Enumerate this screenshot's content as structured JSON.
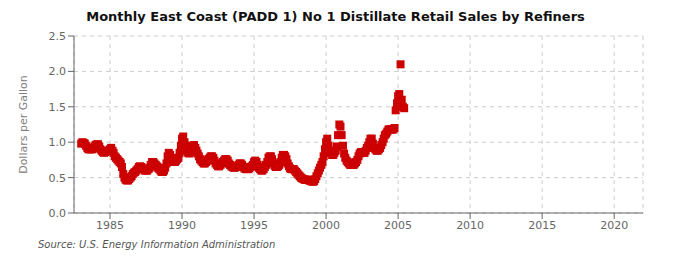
{
  "chart_data": {
    "type": "scatter",
    "title": "Monthly East Coast (PADD 1) No 1 Distillate Retail Sales by Refiners",
    "ylabel": "Dollars per Gallon",
    "annotations": [
      "Source: U.S. Energy Information Administration"
    ],
    "color": "#cc0000",
    "marker": "square",
    "grid": true,
    "xlim": [
      1982.5,
      2022
    ],
    "ylim": [
      0.0,
      2.5
    ],
    "xticks": [
      1985,
      1990,
      1995,
      2000,
      2005,
      2010,
      2015,
      2020
    ],
    "yticks": [
      {
        "value": 0.0,
        "label": "0.0"
      },
      0.5,
      {
        "value": 1.0,
        "label": "1.0"
      },
      1.5,
      {
        "value": 2.0,
        "label": "2.0"
      },
      2.5
    ],
    "x": [
      1983.0,
      1983.08,
      1983.17,
      1983.25,
      1983.33,
      1983.42,
      1983.5,
      1983.58,
      1983.67,
      1983.75,
      1983.83,
      1983.92,
      1984.0,
      1984.08,
      1984.17,
      1984.25,
      1984.33,
      1984.42,
      1984.5,
      1984.58,
      1984.67,
      1984.75,
      1984.83,
      1984.92,
      1985.0,
      1985.08,
      1985.17,
      1985.25,
      1985.33,
      1985.42,
      1985.5,
      1985.58,
      1985.67,
      1985.75,
      1985.83,
      1985.92,
      1986.0,
      1986.08,
      1986.17,
      1986.25,
      1986.33,
      1986.42,
      1986.5,
      1986.58,
      1986.67,
      1986.75,
      1986.83,
      1986.92,
      1987.0,
      1987.08,
      1987.17,
      1987.25,
      1987.33,
      1987.42,
      1987.5,
      1987.58,
      1987.67,
      1987.75,
      1987.83,
      1987.92,
      1988.0,
      1988.08,
      1988.17,
      1988.25,
      1988.33,
      1988.42,
      1988.5,
      1988.58,
      1988.67,
      1988.75,
      1988.83,
      1988.92,
      1989.0,
      1989.08,
      1989.17,
      1989.25,
      1989.33,
      1989.42,
      1989.5,
      1989.58,
      1989.67,
      1989.75,
      1989.83,
      1989.92,
      1990.0,
      1990.08,
      1990.17,
      1990.25,
      1990.33,
      1990.42,
      1990.5,
      1990.58,
      1990.67,
      1990.75,
      1990.83,
      1990.92,
      1991.0,
      1991.08,
      1991.17,
      1991.25,
      1991.33,
      1991.42,
      1991.5,
      1991.58,
      1991.67,
      1991.75,
      1991.83,
      1991.92,
      1992.0,
      1992.08,
      1992.17,
      1992.25,
      1992.33,
      1992.42,
      1992.5,
      1992.58,
      1992.67,
      1992.75,
      1992.83,
      1992.92,
      1993.0,
      1993.08,
      1993.17,
      1993.25,
      1993.33,
      1993.42,
      1993.5,
      1993.58,
      1993.67,
      1993.75,
      1993.83,
      1993.92,
      1994.0,
      1994.08,
      1994.17,
      1994.25,
      1994.33,
      1994.42,
      1994.5,
      1994.58,
      1994.67,
      1994.75,
      1994.83,
      1994.92,
      1995.0,
      1995.08,
      1995.17,
      1995.25,
      1995.33,
      1995.42,
      1995.5,
      1995.58,
      1995.67,
      1995.75,
      1995.83,
      1995.92,
      1996.0,
      1996.08,
      1996.17,
      1996.25,
      1996.33,
      1996.42,
      1996.5,
      1996.58,
      1996.67,
      1996.75,
      1996.83,
      1996.92,
      1997.0,
      1997.08,
      1997.17,
      1997.25,
      1997.33,
      1997.42,
      1997.5,
      1997.58,
      1997.67,
      1997.75,
      1997.83,
      1997.92,
      1998.0,
      1998.08,
      1998.17,
      1998.25,
      1998.33,
      1998.42,
      1998.5,
      1998.58,
      1998.67,
      1998.75,
      1998.83,
      1998.92,
      1999.0,
      1999.08,
      1999.17,
      1999.25,
      1999.33,
      1999.42,
      1999.5,
      1999.58,
      1999.67,
      1999.75,
      1999.83,
      1999.92,
      2000.0,
      2000.08,
      2000.17,
      2000.25,
      2000.33,
      2000.42,
      2000.5,
      2000.58,
      2000.67,
      2000.75,
      2000.83,
      2000.92,
      2001.0,
      2001.08,
      2001.17,
      2001.25,
      2001.33,
      2001.42,
      2001.5,
      2001.58,
      2001.67,
      2001.75,
      2001.83,
      2001.92,
      2002.0,
      2002.08,
      2002.17,
      2002.25,
      2002.33,
      2002.42,
      2002.5,
      2002.58,
      2002.67,
      2002.75,
      2002.83,
      2002.92,
      2003.0,
      2003.08,
      2003.17,
      2003.25,
      2003.33,
      2003.42,
      2003.5,
      2003.58,
      2003.67,
      2003.75,
      2003.83,
      2003.92,
      2004.0,
      2004.08,
      2004.17,
      2004.25,
      2004.33,
      2004.42,
      2004.5,
      2004.58,
      2004.67,
      2004.75,
      2004.83,
      2004.92,
      2005.0,
      2005.08,
      2005.17,
      2005.25,
      2005.33,
      2005.42
    ],
    "values": [
      0.98,
      1.0,
      0.99,
      0.98,
      0.95,
      0.92,
      0.9,
      0.9,
      0.9,
      0.9,
      0.92,
      0.94,
      0.96,
      0.97,
      0.97,
      0.94,
      0.9,
      0.88,
      0.86,
      0.85,
      0.86,
      0.87,
      0.88,
      0.88,
      0.9,
      0.92,
      0.88,
      0.85,
      0.8,
      0.78,
      0.76,
      0.74,
      0.72,
      0.7,
      0.65,
      0.55,
      0.5,
      0.47,
      0.46,
      0.46,
      0.48,
      0.5,
      0.52,
      0.55,
      0.57,
      0.58,
      0.6,
      0.62,
      0.65,
      0.66,
      0.65,
      0.63,
      0.62,
      0.6,
      0.6,
      0.6,
      0.62,
      0.64,
      0.68,
      0.72,
      0.72,
      0.7,
      0.68,
      0.66,
      0.64,
      0.62,
      0.6,
      0.58,
      0.58,
      0.6,
      0.64,
      0.7,
      0.8,
      0.85,
      0.82,
      0.78,
      0.74,
      0.72,
      0.72,
      0.74,
      0.76,
      0.78,
      0.85,
      0.95,
      1.05,
      1.08,
      1.0,
      0.95,
      0.88,
      0.85,
      0.84,
      0.86,
      0.92,
      0.95,
      0.96,
      0.92,
      0.88,
      0.84,
      0.8,
      0.76,
      0.74,
      0.72,
      0.7,
      0.7,
      0.72,
      0.74,
      0.76,
      0.78,
      0.8,
      0.8,
      0.78,
      0.74,
      0.7,
      0.68,
      0.66,
      0.66,
      0.68,
      0.7,
      0.72,
      0.74,
      0.76,
      0.76,
      0.74,
      0.7,
      0.68,
      0.66,
      0.65,
      0.64,
      0.64,
      0.65,
      0.66,
      0.68,
      0.7,
      0.7,
      0.68,
      0.65,
      0.63,
      0.62,
      0.62,
      0.62,
      0.63,
      0.65,
      0.66,
      0.68,
      0.72,
      0.74,
      0.72,
      0.68,
      0.64,
      0.62,
      0.6,
      0.6,
      0.62,
      0.65,
      0.68,
      0.72,
      0.78,
      0.8,
      0.8,
      0.76,
      0.7,
      0.67,
      0.65,
      0.65,
      0.66,
      0.68,
      0.72,
      0.78,
      0.82,
      0.82,
      0.8,
      0.76,
      0.7,
      0.66,
      0.63,
      0.62,
      0.62,
      0.62,
      0.6,
      0.58,
      0.56,
      0.54,
      0.52,
      0.5,
      0.49,
      0.48,
      0.47,
      0.47,
      0.47,
      0.47,
      0.46,
      0.45,
      0.45,
      0.44,
      0.45,
      0.48,
      0.52,
      0.56,
      0.6,
      0.64,
      0.68,
      0.72,
      0.8,
      0.9,
      1.0,
      1.05,
      0.95,
      0.88,
      0.85,
      0.82,
      0.82,
      0.85,
      0.88,
      0.94,
      1.1,
      1.25,
      1.22,
      1.1,
      0.95,
      0.84,
      0.78,
      0.74,
      0.72,
      0.7,
      0.68,
      0.68,
      0.68,
      0.68,
      0.7,
      0.72,
      0.75,
      0.8,
      0.84,
      0.86,
      0.86,
      0.85,
      0.85,
      0.88,
      0.92,
      0.95,
      1.0,
      1.05,
      1.05,
      0.98,
      0.92,
      0.9,
      0.88,
      0.88,
      0.9,
      0.92,
      0.96,
      1.0,
      1.05,
      1.1,
      1.12,
      1.15,
      1.18,
      1.18,
      1.18,
      1.18,
      1.18,
      1.2,
      1.45,
      1.55,
      1.65,
      1.68,
      2.1,
      1.6,
      1.5,
      1.48
    ]
  }
}
